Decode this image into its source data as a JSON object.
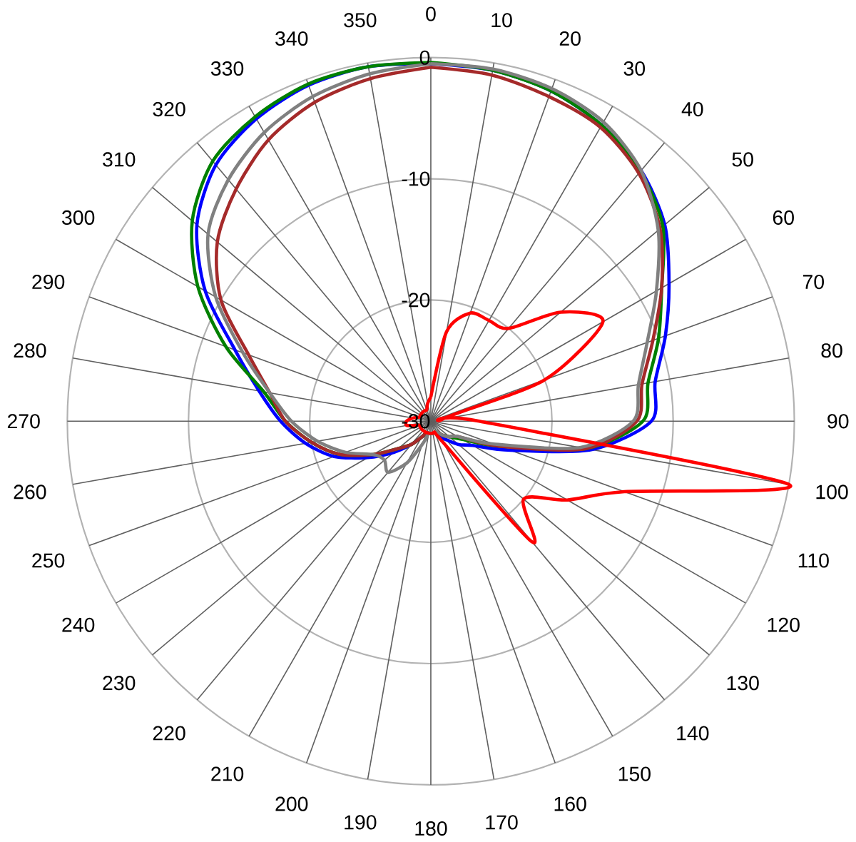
{
  "chart_data": {
    "type": "radar",
    "categories": [
      "0",
      "10",
      "20",
      "30",
      "40",
      "50",
      "60",
      "70",
      "80",
      "90",
      "100",
      "110",
      "120",
      "130",
      "140",
      "150",
      "160",
      "170",
      "180",
      "190",
      "200",
      "210",
      "220",
      "230",
      "240",
      "250",
      "260",
      "270",
      "280",
      "290",
      "300",
      "310",
      "320",
      "330",
      "340",
      "350"
    ],
    "ylim": [
      -30,
      0
    ],
    "yticks": [
      -30,
      -20,
      -10,
      0
    ],
    "grid": true,
    "series": [
      {
        "color": "#0000ff",
        "values": [
          -0.5,
          -0.6,
          -1.0,
          -1.8,
          -3.0,
          -4.8,
          -7.3,
          -9.4,
          -11.2,
          -11.8,
          -16.5,
          -23,
          -26,
          -27,
          -28,
          -28.5,
          -29,
          -29,
          -29,
          -29,
          -29,
          -28.5,
          -27.5,
          -26,
          -24,
          -21.5,
          -19.5,
          -17.6,
          -15.6,
          -12.8,
          -8.5,
          -4.8,
          -2.4,
          -1.2,
          -0.5,
          -0.3
        ]
      },
      {
        "color": "#008000",
        "values": [
          -0.4,
          -0.6,
          -1.0,
          -1.8,
          -3.1,
          -5.0,
          -8.0,
          -10.0,
          -11.8,
          -12.5,
          -17,
          -24,
          -27,
          -28,
          -28.5,
          -29,
          -29,
          -29,
          -29,
          -29,
          -29,
          -28.5,
          -27.5,
          -26.5,
          -24.5,
          -22,
          -20,
          -18,
          -16,
          -12,
          -7.8,
          -4.3,
          -2.0,
          -1.0,
          -0.4,
          -0.3
        ]
      },
      {
        "color": "#a52a2a",
        "values": [
          -0.8,
          -1.0,
          -1.5,
          -2.0,
          -3.3,
          -5.3,
          -8.0,
          -10.5,
          -12.3,
          -13.0,
          -17,
          -24,
          -27.5,
          -28,
          -28.5,
          -29,
          -29,
          -29,
          -29,
          -29,
          -29,
          -28.5,
          -27.5,
          -26.5,
          -24.5,
          -22,
          -20,
          -18,
          -16.5,
          -14,
          -10,
          -7,
          -5,
          -3.2,
          -2,
          -1.3
        ]
      },
      {
        "color": "#808080",
        "values": [
          -0.5,
          -0.5,
          -0.8,
          -1.5,
          -3.0,
          -5.5,
          -8.5,
          -11,
          -12.6,
          -13.3,
          -17.5,
          -24.5,
          -27.5,
          -28,
          -28.5,
          -29,
          -29,
          -29,
          -29,
          -29,
          -28,
          -26,
          -24.5,
          -25,
          -24.5,
          -22.5,
          -20.5,
          -18.5,
          -16.5,
          -13.5,
          -9.5,
          -6,
          -4,
          -2.5,
          -1.5,
          -0.9
        ]
      },
      {
        "color": "#ff0000",
        "values": [
          -28,
          -22.5,
          -20.5,
          -20.4,
          -20,
          -16,
          -13.6,
          -20,
          -29,
          -26,
          0,
          -13,
          -17,
          -20,
          -17,
          -28,
          -29,
          -29,
          -29,
          -29,
          -29,
          -29,
          -29,
          -29,
          -29,
          -29,
          -28,
          -28,
          -28.5,
          -29,
          -29,
          -29,
          -29,
          -29,
          -29,
          -28.5
        ]
      }
    ]
  }
}
